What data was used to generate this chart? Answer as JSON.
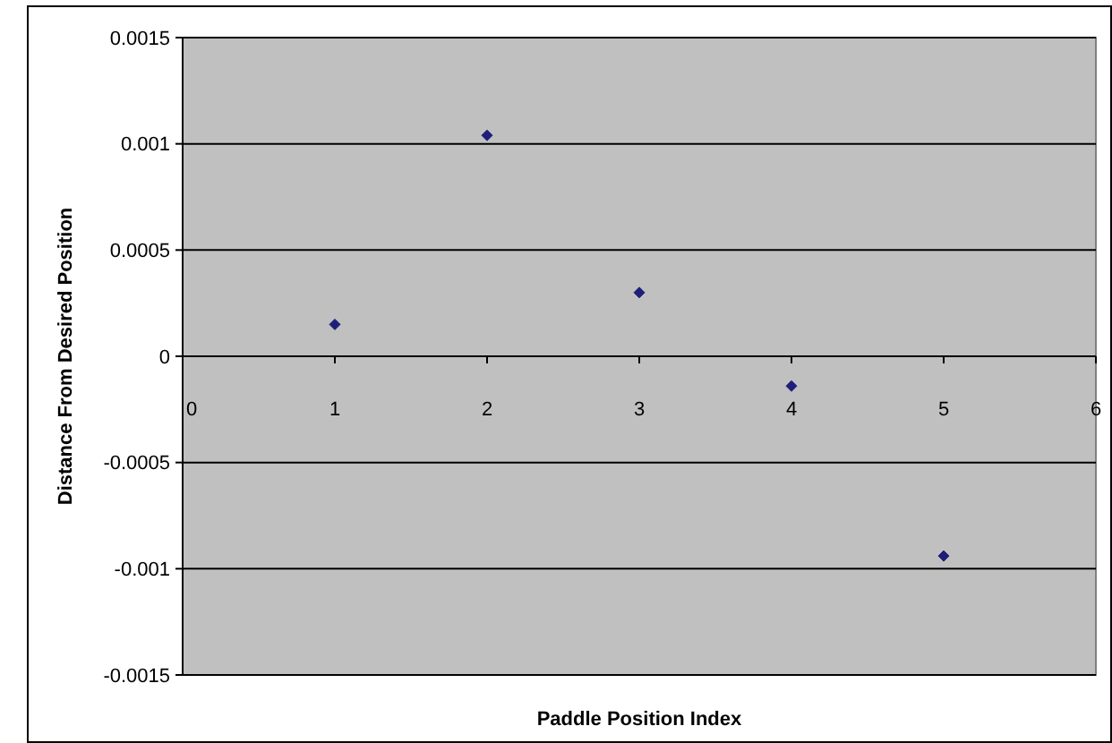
{
  "chart_data": {
    "type": "scatter",
    "xlabel": "Paddle Position Index",
    "ylabel": "Distance From Desired Position",
    "x": [
      1,
      2,
      3,
      4,
      5
    ],
    "series": [
      {
        "color": "#1f1f7a",
        "values": [
          0.00015,
          0.00104,
          0.0003,
          -0.00014,
          -0.00094
        ]
      }
    ],
    "xlim": [
      0,
      6
    ],
    "xticks": [
      0,
      1,
      2,
      3,
      4,
      5,
      6
    ],
    "ylim": [
      -0.0015,
      0.0015
    ],
    "yticks": [
      -0.0015,
      -0.001,
      -0.0005,
      0,
      0.0005,
      0.001,
      0.0015
    ],
    "grid": "y",
    "marker": "diamond"
  }
}
